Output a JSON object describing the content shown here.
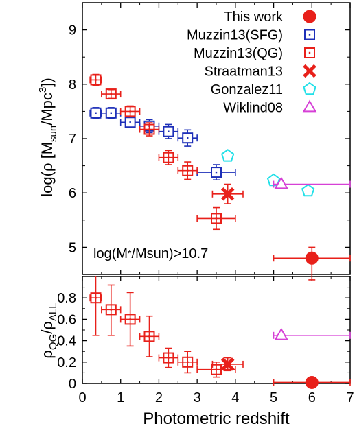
{
  "colors": {
    "red": "#e8201a",
    "blue": "#1d2fb8",
    "cyan": "#22e0e8",
    "magenta": "#d640d6",
    "black": "#000000"
  },
  "chart_data": [
    {
      "type": "scatter",
      "panel": "top",
      "xlabel": "Photometric redshift",
      "ylabel": "log(ρ [M_sun/Mpc^3])",
      "ylabel_parts": {
        "pre": "log(ρ [M",
        "sub1": "sun",
        "mid": "/Mpc",
        "sup": "3",
        "post": "])"
      },
      "xlim": [
        0,
        7
      ],
      "ylim": [
        4.5,
        9.5
      ],
      "xticks": [
        0,
        1,
        2,
        3,
        4,
        5,
        6,
        7
      ],
      "yticks": [
        5,
        6,
        7,
        8,
        9
      ],
      "annotation": "log(M*/Msun)>10.7",
      "legend_position": "top-right",
      "series": [
        {
          "name": "This work",
          "marker": "filled-circle",
          "color": "red",
          "points": [
            {
              "x": 6.0,
              "y": 4.8,
              "xerr": [
                5.0,
                7.0
              ],
              "yerr": [
                4.4,
                5.0
              ]
            }
          ]
        },
        {
          "name": "Muzzin13(SFG)",
          "marker": "open-square",
          "color": "blue",
          "points": [
            {
              "x": 0.35,
              "y": 7.47,
              "xerr": [
                0.2,
                0.5
              ],
              "yerr": [
                7.37,
                7.57
              ]
            },
            {
              "x": 0.75,
              "y": 7.47,
              "xerr": [
                0.5,
                1.0
              ],
              "yerr": [
                7.37,
                7.57
              ]
            },
            {
              "x": 1.25,
              "y": 7.3,
              "xerr": [
                1.0,
                1.5
              ],
              "yerr": [
                7.2,
                7.4
              ]
            },
            {
              "x": 1.75,
              "y": 7.23,
              "xerr": [
                1.5,
                2.0
              ],
              "yerr": [
                7.11,
                7.35
              ]
            },
            {
              "x": 2.25,
              "y": 7.13,
              "xerr": [
                2.0,
                2.5
              ],
              "yerr": [
                7.0,
                7.26
              ]
            },
            {
              "x": 2.75,
              "y": 7.01,
              "xerr": [
                2.5,
                3.0
              ],
              "yerr": [
                6.86,
                7.16
              ]
            },
            {
              "x": 3.5,
              "y": 6.38,
              "xerr": [
                3.0,
                4.0
              ],
              "yerr": [
                6.24,
                6.52
              ]
            }
          ]
        },
        {
          "name": "Muzzin13(QG)",
          "marker": "open-square-dot",
          "color": "red",
          "points": [
            {
              "x": 0.35,
              "y": 8.08,
              "xerr": [
                0.2,
                0.5
              ],
              "yerr": [
                7.98,
                8.18
              ]
            },
            {
              "x": 0.75,
              "y": 7.82,
              "xerr": [
                0.5,
                1.0
              ],
              "yerr": [
                7.74,
                7.9
              ]
            },
            {
              "x": 1.25,
              "y": 7.5,
              "xerr": [
                1.0,
                1.5
              ],
              "yerr": [
                7.4,
                7.6
              ]
            },
            {
              "x": 1.75,
              "y": 7.17,
              "xerr": [
                1.5,
                2.0
              ],
              "yerr": [
                7.05,
                7.29
              ]
            },
            {
              "x": 2.25,
              "y": 6.65,
              "xerr": [
                2.0,
                2.5
              ],
              "yerr": [
                6.52,
                6.78
              ]
            },
            {
              "x": 2.75,
              "y": 6.41,
              "xerr": [
                2.5,
                3.0
              ],
              "yerr": [
                6.25,
                6.57
              ]
            },
            {
              "x": 3.5,
              "y": 5.53,
              "xerr": [
                3.0,
                4.0
              ],
              "yerr": [
                5.33,
                5.73
              ]
            }
          ]
        },
        {
          "name": "Straatman13",
          "marker": "x-cross",
          "color": "red",
          "points": [
            {
              "x": 3.8,
              "y": 5.98,
              "xerr": [
                3.4,
                4.2
              ],
              "yerr": [
                5.8,
                6.16
              ]
            }
          ]
        },
        {
          "name": "Gonzalez11",
          "marker": "open-pentagon",
          "color": "cyan",
          "points": [
            {
              "x": 3.8,
              "y": 6.68
            },
            {
              "x": 5.0,
              "y": 6.23
            },
            {
              "x": 5.9,
              "y": 6.04
            }
          ]
        },
        {
          "name": "Wiklind08",
          "marker": "open-triangle",
          "color": "magenta",
          "points": [
            {
              "x": 5.2,
              "y": 6.16,
              "xerr": [
                5.0,
                7.0
              ]
            }
          ]
        }
      ]
    },
    {
      "type": "scatter",
      "panel": "bottom",
      "xlabel": "Photometric redshift",
      "ylabel": "ρ_QG/ρ_ALL",
      "ylabel_parts": {
        "rho1": "ρ",
        "sub1": "QG",
        "slash": "/",
        "rho2": "ρ",
        "sub2": "ALL"
      },
      "xlim": [
        0,
        7
      ],
      "ylim": [
        0,
        1
      ],
      "xticks": [
        0,
        1,
        2,
        3,
        4,
        5,
        6,
        7
      ],
      "yticks": [
        0,
        0.2,
        0.4,
        0.6,
        0.8
      ],
      "series": [
        {
          "name": "This work",
          "marker": "filled-circle",
          "color": "red",
          "points": [
            {
              "x": 6.0,
              "y": 0.01,
              "xerr": [
                5.0,
                7.0
              ]
            }
          ]
        },
        {
          "name": "Muzzin13(QG)",
          "marker": "open-square-dot",
          "color": "red",
          "points": [
            {
              "x": 0.35,
              "y": 0.8,
              "xerr": [
                0.2,
                0.5
              ],
              "yerr": [
                0.45,
                1.0
              ]
            },
            {
              "x": 0.75,
              "y": 0.69,
              "xerr": [
                0.5,
                1.0
              ],
              "yerr": [
                0.45,
                0.92
              ]
            },
            {
              "x": 1.25,
              "y": 0.6,
              "xerr": [
                1.0,
                1.5
              ],
              "yerr": [
                0.35,
                0.85
              ]
            },
            {
              "x": 1.75,
              "y": 0.44,
              "xerr": [
                1.5,
                2.0
              ],
              "yerr": [
                0.25,
                0.63
              ]
            },
            {
              "x": 2.25,
              "y": 0.24,
              "xerr": [
                2.0,
                2.5
              ],
              "yerr": [
                0.15,
                0.33
              ]
            },
            {
              "x": 2.75,
              "y": 0.2,
              "xerr": [
                2.5,
                3.0
              ],
              "yerr": [
                0.1,
                0.3
              ]
            },
            {
              "x": 3.5,
              "y": 0.13,
              "xerr": [
                3.0,
                4.0
              ],
              "yerr": [
                0.06,
                0.2
              ]
            }
          ]
        },
        {
          "name": "Straatman13",
          "marker": "x-cross",
          "color": "red",
          "points": [
            {
              "x": 3.8,
              "y": 0.18,
              "xerr": [
                3.4,
                4.2
              ],
              "yerr": [
                0.12,
                0.24
              ]
            }
          ]
        },
        {
          "name": "Wiklind08",
          "marker": "open-triangle",
          "color": "magenta",
          "points": [
            {
              "x": 5.2,
              "y": 0.45,
              "xerr": [
                5.0,
                7.0
              ]
            }
          ]
        }
      ]
    }
  ]
}
